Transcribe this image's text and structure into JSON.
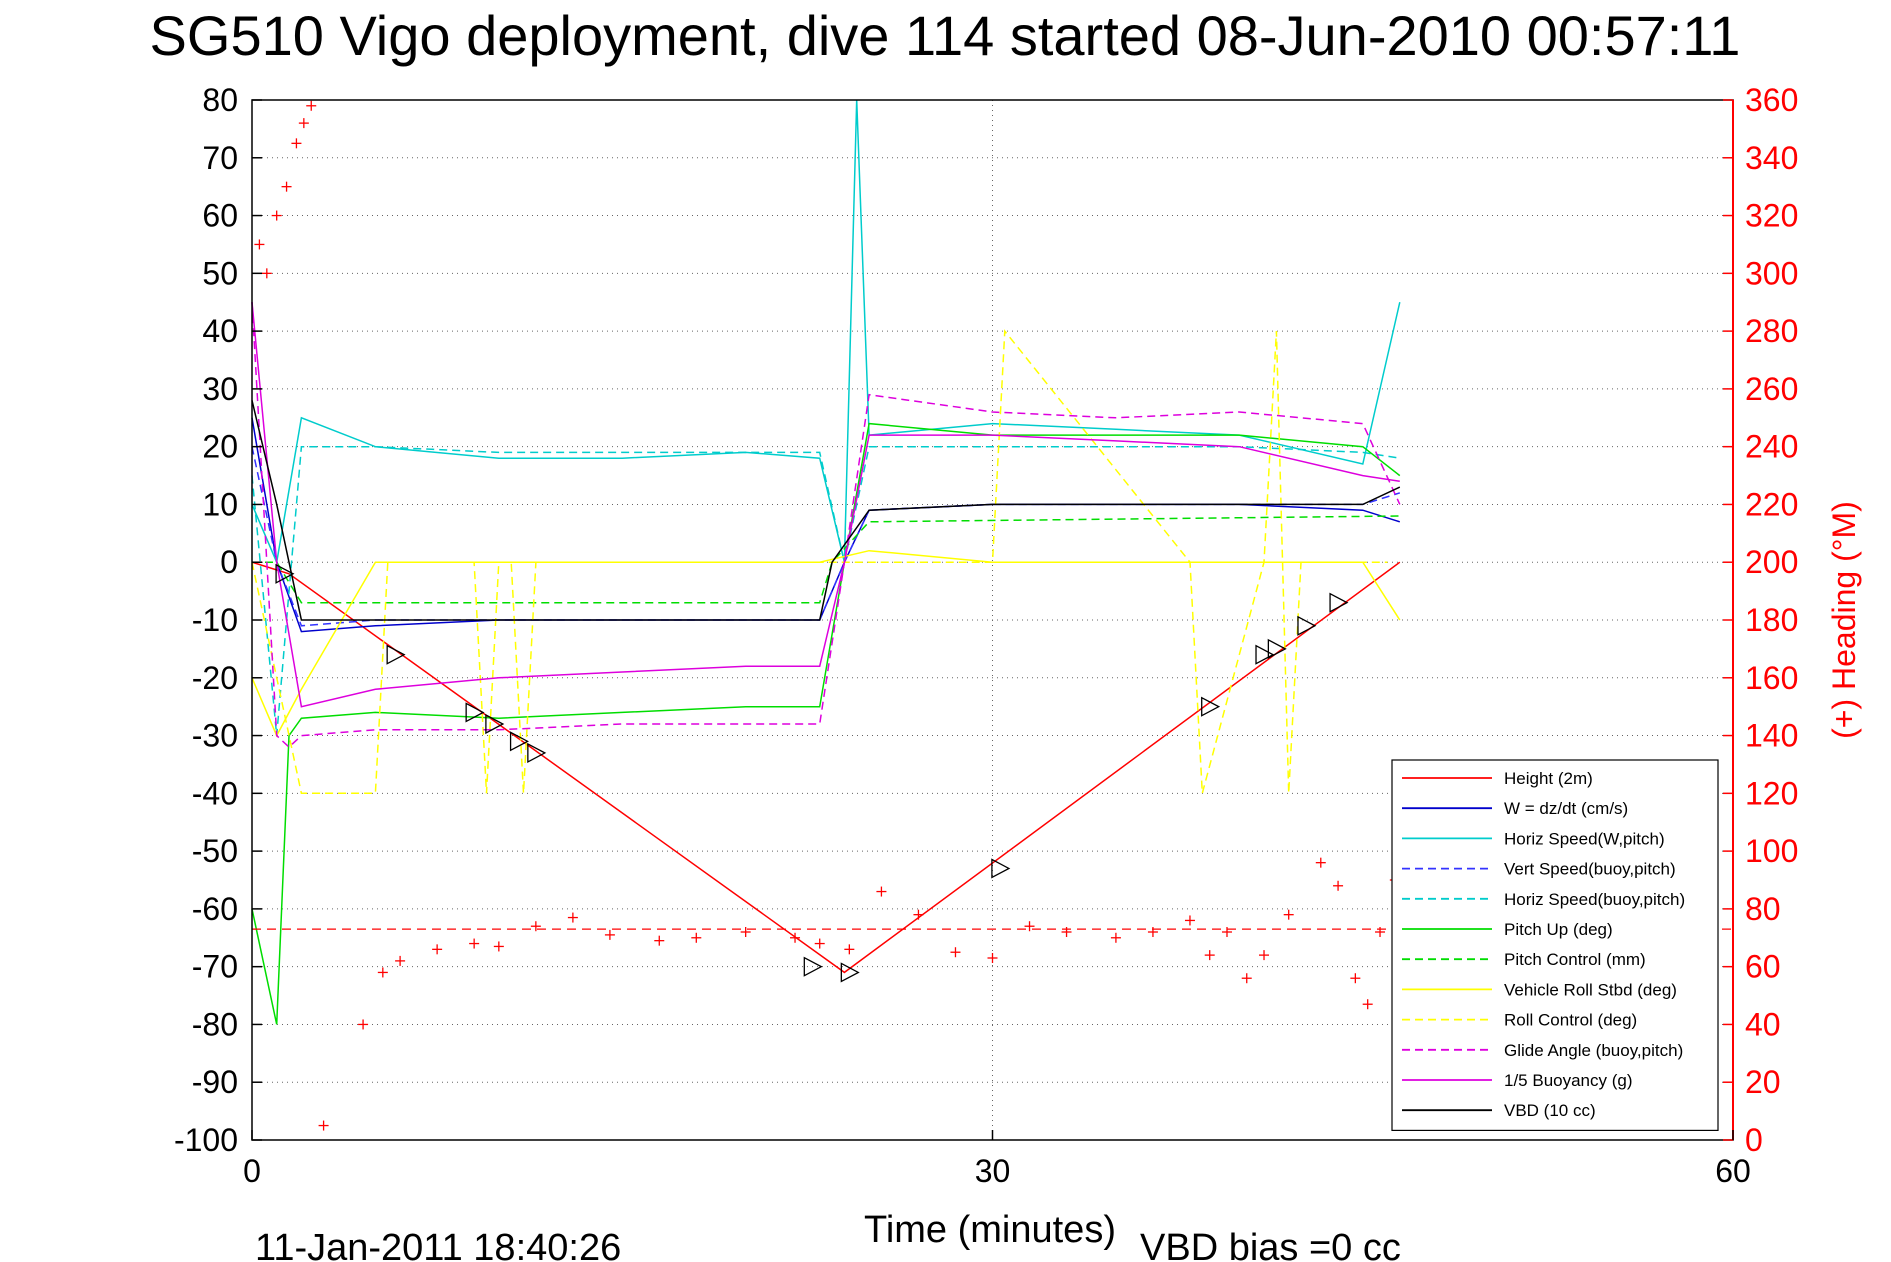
{
  "chart_data": {
    "type": "line",
    "title": "SG510 Vigo deployment, dive 114 started 08-Jun-2010 00:57:11",
    "xlabel": "Time (minutes)",
    "ylabel_left": "",
    "ylabel_right": "(+) Heading (°M)",
    "xlim": [
      0,
      60
    ],
    "ylim_left": [
      -100,
      80
    ],
    "ylim_right": [
      0,
      360
    ],
    "xticks": [
      "0",
      "30",
      "60"
    ],
    "yticks_left": [
      "80",
      "70",
      "60",
      "50",
      "40",
      "30",
      "20",
      "10",
      "0",
      "-10",
      "-20",
      "-30",
      "-40",
      "-50",
      "-60",
      "-70",
      "-80",
      "-90",
      "-100"
    ],
    "yticks_right": [
      "360",
      "340",
      "320",
      "300",
      "280",
      "260",
      "240",
      "220",
      "200",
      "180",
      "160",
      "140",
      "120",
      "100",
      "80",
      "60",
      "40",
      "20",
      "0"
    ],
    "grid": true,
    "legend_position": "lower-right",
    "footer_date": "11-Jan-2011 18:40:26",
    "footer_vbd": "VBD bias =0 cc",
    "series": [
      {
        "name": "Height (2m)",
        "color": "#ff0000",
        "style": "solid",
        "x": [
          0,
          1.5,
          24,
          46.5
        ],
        "y": [
          0,
          -2,
          -71,
          0
        ]
      },
      {
        "name": "W = dz/dt (cm/s)",
        "color": "#0000cc",
        "style": "solid",
        "x": [
          0,
          1,
          2,
          5,
          10,
          15,
          20,
          23,
          24,
          25,
          30,
          35,
          40,
          45,
          46.5
        ],
        "y": [
          25,
          0,
          -12,
          -11,
          -10,
          -10,
          -10,
          -10,
          0,
          9,
          10,
          10,
          10,
          9,
          7
        ]
      },
      {
        "name": "Horiz Speed(W,pitch)",
        "color": "#00cccc",
        "style": "solid",
        "x": [
          0,
          1,
          2,
          5,
          10,
          15,
          20,
          23,
          24,
          24.5,
          25,
          30,
          35,
          40,
          45,
          46.5
        ],
        "y": [
          10,
          0,
          25,
          20,
          18,
          18,
          19,
          18,
          0,
          80,
          22,
          24,
          23,
          22,
          17,
          45
        ]
      },
      {
        "name": "Vert Speed(buoy,pitch)",
        "color": "#3333ff",
        "style": "dashed",
        "x": [
          0,
          1,
          2,
          5,
          10,
          15,
          20,
          23,
          24,
          25,
          30,
          35,
          40,
          45,
          46.5
        ],
        "y": [
          20,
          0,
          -11,
          -10,
          -10,
          -10,
          -10,
          -10,
          0,
          9,
          10,
          10,
          10,
          10,
          12
        ]
      },
      {
        "name": "Horiz Speed(buoy,pitch)",
        "color": "#00cccc",
        "style": "dashed",
        "x": [
          0,
          1,
          2,
          5,
          10,
          15,
          20,
          23,
          24,
          25,
          30,
          35,
          40,
          45,
          46.5
        ],
        "y": [
          15,
          -30,
          20,
          20,
          19,
          19,
          19,
          19,
          0,
          20,
          20,
          20,
          20,
          19,
          18
        ]
      },
      {
        "name": "Pitch Up (deg)",
        "color": "#00dd00",
        "style": "solid",
        "x": [
          0,
          1,
          1.5,
          2,
          5,
          10,
          15,
          20,
          23,
          24,
          25,
          30,
          35,
          40,
          45,
          46.5
        ],
        "y": [
          -60,
          -80,
          -30,
          -27,
          -26,
          -27,
          -26,
          -25,
          -25,
          0,
          24,
          22,
          22,
          22,
          20,
          15
        ]
      },
      {
        "name": "Pitch Control (mm)",
        "color": "#00dd00",
        "style": "dashed",
        "x": [
          0,
          1,
          2,
          23,
          23.5,
          25,
          46.5
        ],
        "y": [
          0,
          0,
          -7,
          -7,
          0,
          7,
          8
        ]
      },
      {
        "name": "Vehicle Roll Stbd (deg)",
        "color": "#ffff00",
        "style": "solid",
        "x": [
          0,
          1,
          2,
          5,
          10,
          15,
          20,
          23,
          25,
          30,
          35,
          40,
          45,
          46.5
        ],
        "y": [
          -20,
          -30,
          -22,
          0,
          0,
          0,
          0,
          0,
          2,
          0,
          0,
          0,
          0,
          -10
        ]
      },
      {
        "name": "Roll Control (deg)",
        "color": "#ffff00",
        "style": "dashed",
        "x": [
          0,
          2,
          5,
          5.5,
          9,
          9.5,
          10,
          10.5,
          11,
          11.5,
          30,
          30.5,
          38,
          38.5,
          41,
          41.5,
          42,
          42.5,
          46
        ],
        "y": [
          0,
          -40,
          -40,
          0,
          0,
          -40,
          0,
          0,
          -40,
          0,
          0,
          40,
          0,
          -40,
          0,
          40,
          -40,
          0,
          0
        ]
      },
      {
        "name": "Glide Angle (buoy,pitch)",
        "color": "#dd00dd",
        "style": "dashed",
        "x": [
          0,
          1,
          1.5,
          2,
          5,
          10,
          15,
          20,
          23,
          24,
          25,
          30,
          35,
          40,
          45,
          46.5
        ],
        "y": [
          45,
          -30,
          -32,
          -30,
          -29,
          -29,
          -28,
          -28,
          -28,
          0,
          29,
          26,
          25,
          26,
          24,
          10
        ]
      },
      {
        "name": "1/5 Buoyancy (g)",
        "color": "#dd00dd",
        "style": "solid",
        "x": [
          0,
          1,
          2,
          5,
          10,
          15,
          20,
          23,
          24,
          25,
          30,
          35,
          40,
          45,
          46.5
        ],
        "y": [
          45,
          0,
          -25,
          -22,
          -20,
          -19,
          -18,
          -18,
          0,
          22,
          22,
          21,
          20,
          15,
          14
        ]
      },
      {
        "name": "VBD (10 cc)",
        "color": "#000000",
        "style": "solid",
        "x": [
          0,
          1,
          1.5,
          2,
          23,
          23.5,
          25,
          30,
          45,
          46.5
        ],
        "y": [
          28,
          10,
          0,
          -10,
          -10,
          0,
          9,
          10,
          10,
          13
        ]
      }
    ],
    "heading_series": {
      "axis": "right",
      "marker": "+",
      "color": "#ff0000",
      "x": [
        0.3,
        0.6,
        1.0,
        1.4,
        1.8,
        2.1,
        2.4,
        2.9,
        4.5,
        5.3,
        6.0,
        7.5,
        9.0,
        10.0,
        11.5,
        13.0,
        14.5,
        16.5,
        18.0,
        20.0,
        22.0,
        23.0,
        24.2,
        25.5,
        27.0,
        28.5,
        30.0,
        31.5,
        33.0,
        35.0,
        36.5,
        38.0,
        38.8,
        39.5,
        40.3,
        41.0,
        42.0,
        43.3,
        44.0,
        44.7,
        45.2,
        45.7,
        46.3
      ],
      "y": [
        310,
        300,
        320,
        330,
        345,
        352,
        358,
        5,
        40,
        58,
        62,
        66,
        68,
        67,
        74,
        77,
        71,
        69,
        70,
        72,
        70,
        68,
        66,
        86,
        78,
        65,
        63,
        74,
        72,
        70,
        72,
        76,
        64,
        72,
        56,
        64,
        78,
        96,
        88,
        56,
        47,
        72,
        90
      ],
      "reference_line": 73
    },
    "markers": {
      "type": "triangle",
      "x": [
        1.3,
        5.8,
        9.0,
        9.8,
        10.8,
        11.5,
        22.7,
        24.2,
        30.3,
        38.8,
        41.0,
        41.5,
        42.7,
        44.0
      ],
      "y": [
        -2,
        -16,
        -26,
        -28,
        -31,
        -33,
        -70,
        -71,
        -53,
        -25,
        -16,
        -15,
        -11,
        -7
      ]
    }
  }
}
